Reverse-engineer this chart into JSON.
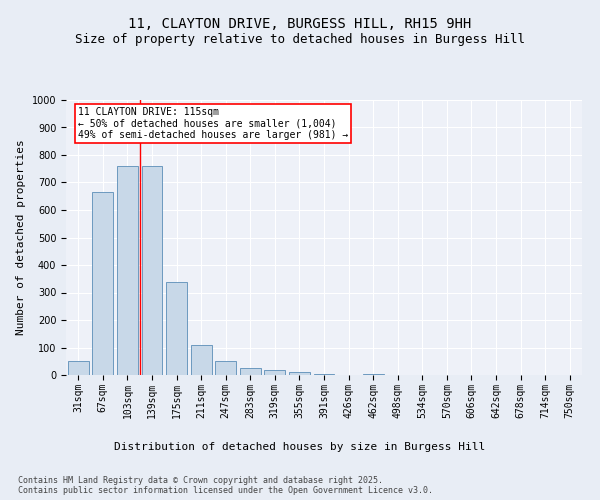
{
  "title": "11, CLAYTON DRIVE, BURGESS HILL, RH15 9HH",
  "subtitle": "Size of property relative to detached houses in Burgess Hill",
  "xlabel": "Distribution of detached houses by size in Burgess Hill",
  "ylabel": "Number of detached properties",
  "categories": [
    "31sqm",
    "67sqm",
    "103sqm",
    "139sqm",
    "175sqm",
    "211sqm",
    "247sqm",
    "283sqm",
    "319sqm",
    "355sqm",
    "391sqm",
    "426sqm",
    "462sqm",
    "498sqm",
    "534sqm",
    "570sqm",
    "606sqm",
    "642sqm",
    "678sqm",
    "714sqm",
    "750sqm"
  ],
  "values": [
    50,
    665,
    760,
    760,
    340,
    110,
    50,
    27,
    20,
    12,
    5,
    0,
    5,
    0,
    0,
    0,
    0,
    0,
    0,
    0,
    0
  ],
  "bar_color": "#c8d8e8",
  "bar_edge_color": "#5b8db8",
  "red_line_x": 2.5,
  "annotation_text": "11 CLAYTON DRIVE: 115sqm\n← 50% of detached houses are smaller (1,004)\n49% of semi-detached houses are larger (981) →",
  "ylim": [
    0,
    1000
  ],
  "yticks": [
    0,
    100,
    200,
    300,
    400,
    500,
    600,
    700,
    800,
    900,
    1000
  ],
  "footer": "Contains HM Land Registry data © Crown copyright and database right 2025.\nContains public sector information licensed under the Open Government Licence v3.0.",
  "bg_color": "#e8edf5",
  "plot_bg_color": "#eef1f8",
  "title_fontsize": 10,
  "subtitle_fontsize": 9,
  "axis_label_fontsize": 8,
  "tick_fontsize": 7,
  "footer_fontsize": 6,
  "annotation_fontsize": 7
}
